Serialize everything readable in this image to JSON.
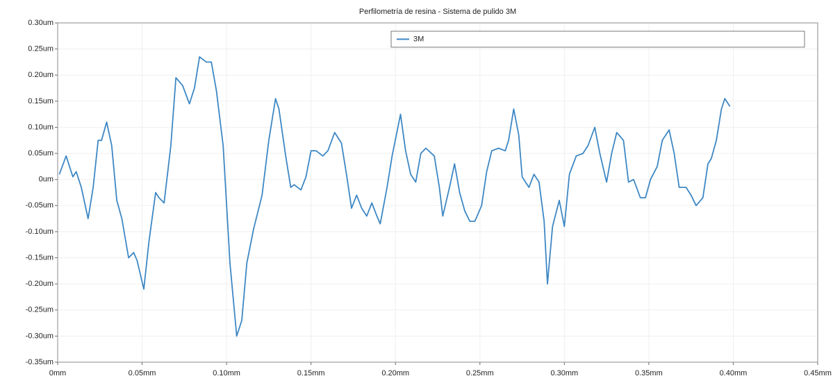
{
  "chart_data": {
    "type": "line",
    "title": "Perfilometría de resina - Sistema de pulido 3M",
    "x": [
      0.001,
      0.005,
      0.009,
      0.011,
      0.014,
      0.018,
      0.021,
      0.024,
      0.026,
      0.029,
      0.032,
      0.035,
      0.038,
      0.042,
      0.045,
      0.047,
      0.051,
      0.054,
      0.058,
      0.06,
      0.063,
      0.067,
      0.07,
      0.074,
      0.078,
      0.081,
      0.084,
      0.088,
      0.091,
      0.094,
      0.098,
      0.102,
      0.106,
      0.109,
      0.112,
      0.116,
      0.121,
      0.125,
      0.129,
      0.131,
      0.135,
      0.138,
      0.14,
      0.144,
      0.147,
      0.15,
      0.153,
      0.157,
      0.16,
      0.164,
      0.168,
      0.171,
      0.174,
      0.177,
      0.18,
      0.183,
      0.186,
      0.189,
      0.191,
      0.195,
      0.198,
      0.203,
      0.206,
      0.209,
      0.212,
      0.215,
      0.218,
      0.223,
      0.226,
      0.228,
      0.232,
      0.235,
      0.238,
      0.241,
      0.244,
      0.247,
      0.251,
      0.254,
      0.257,
      0.261,
      0.265,
      0.267,
      0.27,
      0.273,
      0.275,
      0.279,
      0.282,
      0.285,
      0.288,
      0.29,
      0.293,
      0.297,
      0.3,
      0.303,
      0.307,
      0.311,
      0.314,
      0.318,
      0.321,
      0.325,
      0.328,
      0.331,
      0.335,
      0.338,
      0.341,
      0.345,
      0.348,
      0.351,
      0.355,
      0.358,
      0.362,
      0.365,
      0.368,
      0.372,
      0.375,
      0.378,
      0.382,
      0.385,
      0.387,
      0.39,
      0.393,
      0.395,
      0.398
    ],
    "series": [
      {
        "name": "3M",
        "color": "#3d87c4",
        "values": [
          0.01,
          0.045,
          0.005,
          0.015,
          -0.015,
          -0.075,
          -0.015,
          0.075,
          0.075,
          0.11,
          0.065,
          -0.04,
          -0.075,
          -0.15,
          -0.14,
          -0.155,
          -0.21,
          -0.12,
          -0.025,
          -0.035,
          -0.045,
          0.065,
          0.195,
          0.18,
          0.145,
          0.175,
          0.235,
          0.225,
          0.225,
          0.17,
          0.065,
          -0.16,
          -0.3,
          -0.27,
          -0.16,
          -0.095,
          -0.03,
          0.075,
          0.155,
          0.135,
          0.045,
          -0.015,
          -0.01,
          -0.02,
          0.005,
          0.055,
          0.055,
          0.045,
          0.055,
          0.09,
          0.07,
          0.01,
          -0.055,
          -0.03,
          -0.055,
          -0.07,
          -0.045,
          -0.07,
          -0.085,
          -0.015,
          0.045,
          0.125,
          0.055,
          0.01,
          -0.005,
          0.05,
          0.06,
          0.045,
          -0.015,
          -0.07,
          -0.015,
          0.03,
          -0.025,
          -0.06,
          -0.08,
          -0.08,
          -0.05,
          0.015,
          0.055,
          0.06,
          0.055,
          0.075,
          0.135,
          0.085,
          0.005,
          -0.015,
          0.01,
          -0.005,
          -0.08,
          -0.2,
          -0.09,
          -0.04,
          -0.09,
          0.01,
          0.045,
          0.05,
          0.065,
          0.1,
          0.05,
          -0.005,
          0.05,
          0.09,
          0.075,
          -0.005,
          0,
          -0.035,
          -0.035,
          0,
          0.025,
          0.075,
          0.095,
          0.05,
          -0.015,
          -0.015,
          -0.03,
          -0.05,
          -0.035,
          0.03,
          0.04,
          0.075,
          0.135,
          0.155,
          0.14
        ]
      }
    ],
    "xlim": [
      0,
      0.45
    ],
    "xticks": [
      {
        "value": 0,
        "label": "0mm"
      },
      {
        "value": 0.05,
        "label": "0.05mm"
      },
      {
        "value": 0.1,
        "label": "0.10mm"
      },
      {
        "value": 0.15,
        "label": "0.15mm"
      },
      {
        "value": 0.2,
        "label": "0.20mm"
      },
      {
        "value": 0.25,
        "label": "0.25mm"
      },
      {
        "value": 0.3,
        "label": "0.30mm"
      },
      {
        "value": 0.35,
        "label": "0.35mm"
      },
      {
        "value": 0.4,
        "label": "0.40mm"
      },
      {
        "value": 0.45,
        "label": "0.45mm"
      }
    ],
    "ylim": [
      -0.35,
      0.3
    ],
    "yticks": [
      {
        "value": 0.3,
        "label": "0.30um"
      },
      {
        "value": 0.25,
        "label": "0.25um"
      },
      {
        "value": 0.2,
        "label": "0.20um"
      },
      {
        "value": 0.15,
        "label": "0.15um"
      },
      {
        "value": 0.1,
        "label": "0.10um"
      },
      {
        "value": 0.05,
        "label": "0.05um"
      },
      {
        "value": 0,
        "label": "0um"
      },
      {
        "value": -0.05,
        "label": "-0.05um"
      },
      {
        "value": -0.1,
        "label": "-0.10um"
      },
      {
        "value": -0.15,
        "label": "-0.15um"
      },
      {
        "value": -0.2,
        "label": "-0.20um"
      },
      {
        "value": -0.25,
        "label": "-0.25um"
      },
      {
        "value": -0.3,
        "label": "-0.30um"
      },
      {
        "value": -0.35,
        "label": "-0.35um"
      }
    ],
    "grid": true,
    "legend": "upper right"
  }
}
